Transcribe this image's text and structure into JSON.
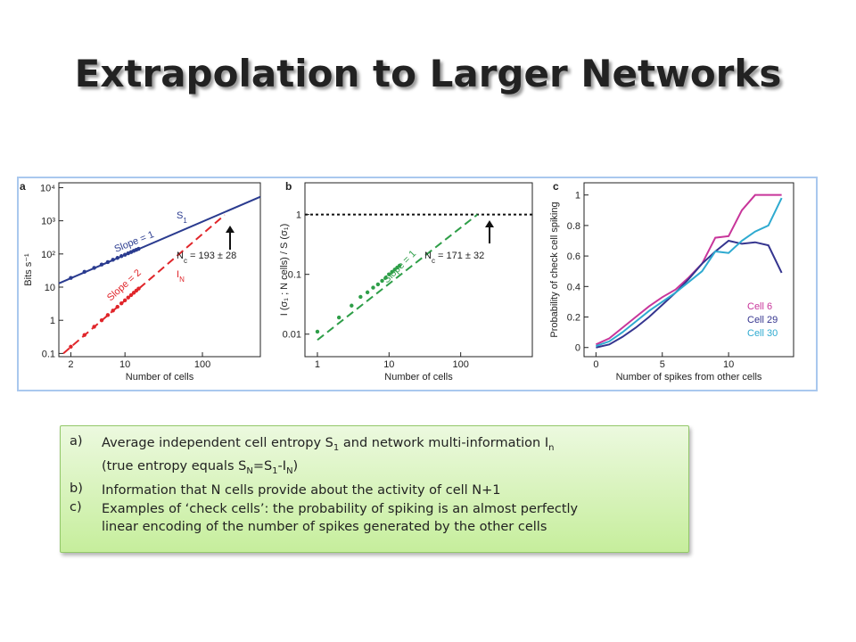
{
  "title": "Extrapolation to Larger Networks",
  "chart_data": [
    {
      "type": "line",
      "panel_label": "a",
      "xlabel": "Number of cells",
      "ylabel": "Bits s⁻¹",
      "xscale": "log",
      "yscale": "log",
      "xlim": [
        1.4,
        560
      ],
      "ylim": [
        0.08,
        14000
      ],
      "xticks": [
        2,
        10,
        100
      ],
      "yticks": [
        0.1,
        1,
        10,
        {
          "value": 100,
          "label": "10²"
        },
        {
          "value": 1000,
          "label": "10³"
        },
        {
          "value": 10000,
          "label": "10⁴"
        }
      ],
      "series": [
        {
          "color": "#2a3b8f",
          "line": "solid",
          "x": [
            1.4,
            560
          ],
          "values": [
            13,
            5300
          ]
        },
        {
          "color": "#2a3b8f",
          "marker": true,
          "x": [
            2,
            3,
            4,
            5,
            6,
            7,
            8,
            9,
            10,
            11,
            12,
            13,
            14,
            15
          ],
          "values": [
            19,
            29,
            38,
            48,
            57,
            67,
            76,
            86,
            95,
            105,
            114,
            124,
            133,
            143
          ]
        },
        {
          "color": "#e0252a",
          "line": "dashed",
          "x": [
            1.6,
            193
          ],
          "values": [
            0.1,
            1490
          ]
        },
        {
          "color": "#e0252a",
          "marker": true,
          "x": [
            2,
            3,
            4,
            5,
            6,
            7,
            8,
            9,
            10,
            11,
            12,
            13,
            14,
            15
          ],
          "values": [
            0.16,
            0.36,
            0.64,
            1.0,
            1.44,
            1.96,
            2.56,
            3.24,
            4.0,
            4.84,
            5.76,
            6.76,
            7.84,
            9.0
          ]
        }
      ],
      "annotations": [
        {
          "parts": [
            "Slope = 1"
          ]
        },
        {
          "parts": [
            "S",
            {
              "sub": "1"
            }
          ]
        },
        {
          "parts": [
            "Slope = 2"
          ]
        },
        {
          "parts": [
            "I",
            {
              "sub": "N"
            }
          ]
        },
        {
          "parts": [
            "N",
            {
              "sub": "c"
            },
            " = 193 ± 28"
          ]
        }
      ]
    },
    {
      "type": "line",
      "panel_label": "b",
      "xlabel": "Number of cells",
      "ylabel": "I (σ₁ ; N cells) / S (σ₁)",
      "xscale": "log",
      "yscale": "log",
      "xlim": [
        0.67,
        1000
      ],
      "ylim": [
        0.0042,
        3.4
      ],
      "xticks": [
        1,
        10,
        100
      ],
      "yticks": [
        0.01,
        0.1,
        1
      ],
      "hline": 1,
      "series": [
        {
          "color": "#2e9e48",
          "line": "dashed",
          "x": [
            1,
            171
          ],
          "values": [
            0.008,
            1
          ]
        },
        {
          "color": "#2e9e48",
          "marker": true,
          "x": [
            1,
            2,
            3,
            4,
            5,
            6,
            7,
            8,
            9,
            10,
            11,
            12,
            13,
            14
          ],
          "values": [
            0.011,
            0.019,
            0.03,
            0.042,
            0.05,
            0.06,
            0.068,
            0.078,
            0.088,
            0.1,
            0.11,
            0.12,
            0.13,
            0.14
          ]
        }
      ],
      "annotations": [
        {
          "parts": [
            "Slope = 1"
          ]
        },
        {
          "parts": [
            "N",
            {
              "sub": "c"
            },
            " = 171 ± 32"
          ]
        }
      ]
    },
    {
      "type": "line",
      "panel_label": "c",
      "xlabel": "Number of spikes from other cells",
      "ylabel": "Probability of check cell spiking",
      "xscale": "linear",
      "yscale": "linear",
      "xlim": [
        -0.9,
        14.9
      ],
      "ylim": [
        -0.06,
        1.08
      ],
      "xticks": [
        0,
        5,
        10
      ],
      "yticks": [
        0,
        0.2,
        0.4,
        0.6,
        0.8,
        1
      ],
      "legend": "lower right",
      "series": [
        {
          "name": "Cell 6",
          "color": "#c8359a",
          "line": "solid",
          "x": [
            0,
            1,
            2,
            3,
            4,
            5,
            6,
            7,
            8,
            9,
            10,
            11,
            12,
            13,
            14
          ],
          "values": [
            0.02,
            0.06,
            0.13,
            0.2,
            0.27,
            0.33,
            0.38,
            0.46,
            0.55,
            0.72,
            0.73,
            0.9,
            1,
            1,
            1
          ]
        },
        {
          "name": "Cell 29",
          "color": "#35358f",
          "line": "solid",
          "x": [
            0,
            1,
            2,
            3,
            4,
            5,
            6,
            7,
            8,
            9,
            10,
            11,
            12,
            13,
            14
          ],
          "values": [
            0,
            0.02,
            0.07,
            0.13,
            0.2,
            0.28,
            0.36,
            0.45,
            0.55,
            0.63,
            0.7,
            0.68,
            0.69,
            0.67,
            0.49
          ]
        },
        {
          "name": "Cell 30",
          "color": "#2eaad0",
          "line": "solid",
          "x": [
            0,
            1,
            2,
            3,
            4,
            5,
            6,
            7,
            8,
            9,
            10,
            11,
            12,
            13,
            14
          ],
          "values": [
            0.01,
            0.04,
            0.1,
            0.17,
            0.24,
            0.3,
            0.36,
            0.43,
            0.5,
            0.63,
            0.62,
            0.7,
            0.76,
            0.8,
            0.98
          ]
        }
      ],
      "annotations": []
    }
  ],
  "notes": [
    {
      "marker": "a)",
      "lines": [
        [
          "Average independent cell entropy S",
          {
            "sub": "1"
          },
          " and network multi-information I",
          {
            "sub": "n"
          }
        ],
        [
          "(true entropy equals S",
          {
            "sub": "N"
          },
          "=S",
          {
            "sub": "1"
          },
          "-I",
          {
            "sub": "N"
          },
          ")"
        ]
      ]
    },
    {
      "marker": "b)",
      "lines": [
        [
          "Information that N cells provide about the activity of cell N+1"
        ]
      ]
    },
    {
      "marker": "c)",
      "lines": [
        [
          "Examples of ‘check cells’: the probability of spiking is an almost perfectly"
        ],
        [
          "linear encoding of the number of spikes generated by the other cells"
        ]
      ]
    }
  ]
}
